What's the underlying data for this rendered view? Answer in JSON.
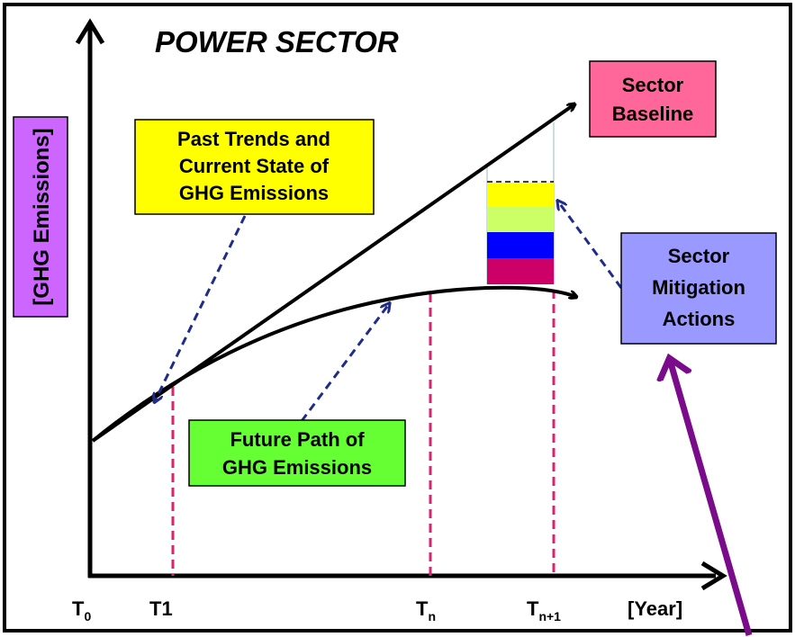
{
  "title": "POWER SECTOR",
  "y_axis_label": "[GHG Emissions]",
  "boxes": {
    "past_trends": [
      "Past Trends and",
      "Current State of",
      "GHG Emissions"
    ],
    "sector_baseline": [
      "Sector",
      "Baseline"
    ],
    "mitigation": [
      "Sector",
      "Mitigation",
      "Actions"
    ],
    "future_path": [
      "Future Path of",
      "GHG Emissions"
    ]
  },
  "x_labels": [
    {
      "text": "T",
      "sub": "0"
    },
    {
      "text": "T1",
      "sub": ""
    },
    {
      "text": "T",
      "sub": "n"
    },
    {
      "text": "T",
      "sub": "n+1"
    },
    {
      "text": "[Year]",
      "sub": ""
    }
  ]
}
